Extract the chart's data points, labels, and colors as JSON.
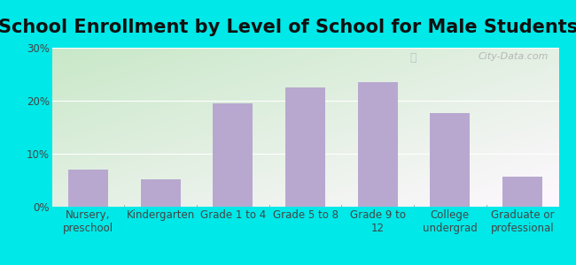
{
  "title": "School Enrollment by Level of School for Male Students",
  "categories": [
    "Nursery,\npreschool",
    "Kindergarten",
    "Grade 1 to 4",
    "Grade 5 to 8",
    "Grade 9 to\n12",
    "College\nundergrad",
    "Graduate or\nprofessional"
  ],
  "values": [
    7.0,
    5.2,
    19.5,
    22.5,
    23.5,
    17.7,
    5.7
  ],
  "bar_color": "#b8a8d0",
  "ylim": [
    0,
    30
  ],
  "yticks": [
    0,
    10,
    20,
    30
  ],
  "ytick_labels": [
    "0%",
    "10%",
    "20%",
    "30%"
  ],
  "background_outer": "#00e8e8",
  "bg_top_left": "#c8e8c8",
  "bg_bottom_right": "#f0f8f0",
  "title_fontsize": 15,
  "tick_fontsize": 8.5,
  "watermark": "City-Data.com"
}
